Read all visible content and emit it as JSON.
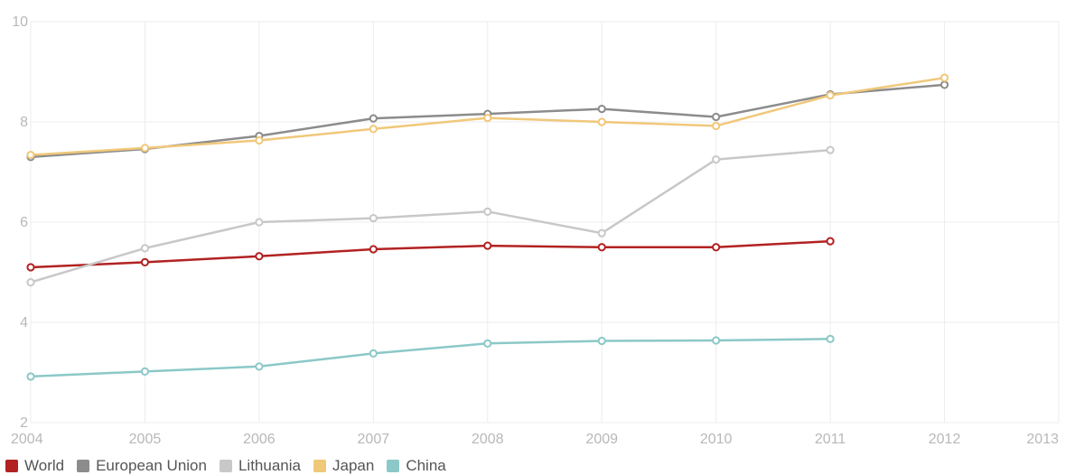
{
  "chart_data": {
    "type": "line",
    "x": [
      2004,
      2005,
      2006,
      2007,
      2008,
      2009,
      2010,
      2011,
      2012
    ],
    "x_ticks": [
      "2004",
      "2005",
      "2006",
      "2007",
      "2008",
      "2009",
      "2010",
      "2011",
      "2012",
      "2013"
    ],
    "xlim": [
      2004,
      2013
    ],
    "y_ticks": [
      "2",
      "4",
      "6",
      "8",
      "10"
    ],
    "ylim": [
      2,
      10
    ],
    "grid": true,
    "legend_position": "bottom-left",
    "series": [
      {
        "name": "World",
        "color": "#b22222",
        "values": [
          5.1,
          5.2,
          5.32,
          5.46,
          5.53,
          5.5,
          5.5,
          5.62,
          null
        ]
      },
      {
        "name": "European Union",
        "color": "#8c8c8c",
        "values": [
          7.3,
          7.46,
          7.72,
          8.07,
          8.16,
          8.26,
          8.1,
          8.55,
          8.74
        ]
      },
      {
        "name": "Lithuania",
        "color": "#c8c8c8",
        "values": [
          4.8,
          5.48,
          6.0,
          6.08,
          6.21,
          5.78,
          7.25,
          7.44,
          null
        ]
      },
      {
        "name": "Japan",
        "color": "#f0c87a",
        "values": [
          7.34,
          7.48,
          7.63,
          7.86,
          8.08,
          8.0,
          7.92,
          8.53,
          8.88
        ]
      },
      {
        "name": "China",
        "color": "#8cc8c8",
        "values": [
          2.92,
          3.02,
          3.12,
          3.38,
          3.58,
          3.63,
          3.64,
          3.67,
          null
        ]
      }
    ]
  }
}
